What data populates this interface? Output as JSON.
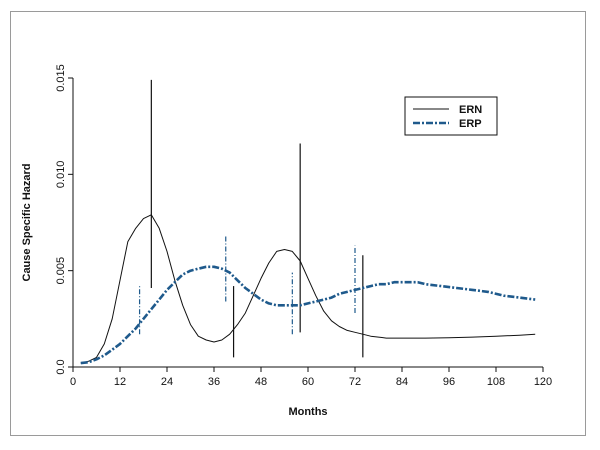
{
  "chart_data": {
    "type": "line",
    "title": "",
    "xlabel": "Months",
    "ylabel": "Cause Specific Hazard",
    "xlim": [
      0,
      120
    ],
    "ylim": [
      0,
      0.015
    ],
    "xticks": [
      0,
      12,
      24,
      36,
      48,
      60,
      72,
      84,
      96,
      108,
      120
    ],
    "yticks": [
      0.0,
      0.005,
      0.01,
      0.015
    ],
    "ytick_labels": [
      "0.0",
      "0.005",
      "0.010",
      "0.015"
    ],
    "grid": false,
    "legend": "top-right",
    "series": [
      {
        "name": "ERN",
        "color": "#111111",
        "style": "solid",
        "x": [
          2,
          4,
          6,
          8,
          10,
          12,
          14,
          16,
          18,
          20,
          22,
          24,
          26,
          28,
          30,
          32,
          34,
          36,
          38,
          40,
          42,
          44,
          46,
          48,
          50,
          52,
          54,
          56,
          58,
          60,
          62,
          64,
          66,
          68,
          70,
          72,
          74,
          76,
          78,
          80,
          84,
          90,
          96,
          102,
          108,
          114,
          118
        ],
        "y": [
          0.0002,
          0.0003,
          0.0005,
          0.0012,
          0.0025,
          0.0045,
          0.0065,
          0.0072,
          0.0077,
          0.0079,
          0.0072,
          0.006,
          0.0045,
          0.0032,
          0.0022,
          0.0016,
          0.0014,
          0.0013,
          0.0014,
          0.0017,
          0.0022,
          0.0028,
          0.0037,
          0.0046,
          0.0054,
          0.006,
          0.0061,
          0.006,
          0.0055,
          0.0046,
          0.0037,
          0.0029,
          0.0024,
          0.0021,
          0.0019,
          0.0018,
          0.0017,
          0.0016,
          0.00155,
          0.0015,
          0.0015,
          0.0015,
          0.00152,
          0.00155,
          0.0016,
          0.00165,
          0.0017
        ],
        "error_bars": [
          {
            "x": 20,
            "low": 0.0041,
            "high": 0.0149
          },
          {
            "x": 41,
            "low": 0.0005,
            "high": 0.0042
          },
          {
            "x": 58,
            "low": 0.0018,
            "high": 0.0116
          },
          {
            "x": 74,
            "low": 0.0005,
            "high": 0.0058
          }
        ]
      },
      {
        "name": "ERP",
        "color": "#1f5a8c",
        "style": "dash-dot",
        "x": [
          2,
          4,
          6,
          8,
          10,
          12,
          14,
          16,
          18,
          20,
          22,
          24,
          26,
          28,
          30,
          32,
          34,
          36,
          38,
          40,
          42,
          44,
          46,
          48,
          50,
          52,
          54,
          56,
          58,
          60,
          62,
          64,
          66,
          68,
          70,
          72,
          74,
          76,
          78,
          80,
          82,
          84,
          86,
          88,
          90,
          94,
          98,
          102,
          106,
          110,
          114,
          118
        ],
        "y": [
          0.0002,
          0.00025,
          0.0004,
          0.0006,
          0.0009,
          0.0012,
          0.0016,
          0.002,
          0.0025,
          0.003,
          0.0035,
          0.004,
          0.0044,
          0.0048,
          0.005,
          0.0051,
          0.0052,
          0.0052,
          0.0051,
          0.0049,
          0.0045,
          0.0041,
          0.0038,
          0.0035,
          0.0033,
          0.0032,
          0.0032,
          0.0032,
          0.0032,
          0.0033,
          0.0034,
          0.0035,
          0.0036,
          0.0038,
          0.0039,
          0.004,
          0.0041,
          0.0042,
          0.0043,
          0.0043,
          0.0044,
          0.0044,
          0.0044,
          0.0044,
          0.0043,
          0.0042,
          0.0041,
          0.004,
          0.0039,
          0.0037,
          0.0036,
          0.0035
        ],
        "error_bars": [
          {
            "x": 17,
            "low": 0.0017,
            "high": 0.0042
          },
          {
            "x": 39,
            "low": 0.0034,
            "high": 0.0068
          },
          {
            "x": 56,
            "low": 0.0017,
            "high": 0.0049
          },
          {
            "x": 72,
            "low": 0.0028,
            "high": 0.0063
          }
        ]
      }
    ]
  }
}
